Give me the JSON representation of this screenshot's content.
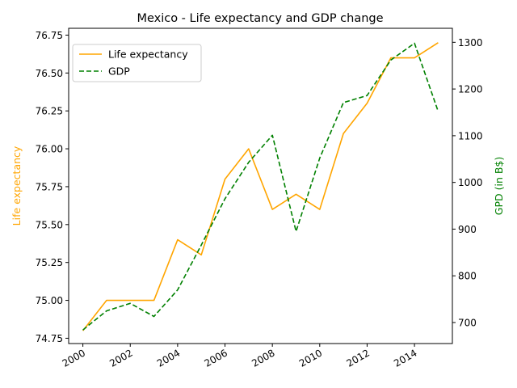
{
  "chart_data": {
    "type": "line",
    "title": "Mexico - Life expectancy and GDP change",
    "x": [
      2000,
      2001,
      2002,
      2003,
      2004,
      2005,
      2006,
      2007,
      2008,
      2009,
      2010,
      2011,
      2012,
      2013,
      2014,
      2015
    ],
    "xticks": [
      2000,
      2002,
      2004,
      2006,
      2008,
      2010,
      2012,
      2014
    ],
    "xlim": [
      1999.4,
      2015.6
    ],
    "y_left": {
      "label": "Life expectancy",
      "color": "#ffa500",
      "lim": [
        74.715,
        76.795
      ],
      "ticks": [
        74.75,
        75.0,
        75.25,
        75.5,
        75.75,
        76.0,
        76.25,
        76.5,
        76.75
      ],
      "tick_labels": [
        "74.75",
        "75.00",
        "75.25",
        "75.50",
        "75.75",
        "76.00",
        "76.25",
        "76.50",
        "76.75"
      ]
    },
    "y_right": {
      "label": "GPD (in B$)",
      "color": "#008000",
      "lim": [
        655,
        1330
      ],
      "ticks": [
        700,
        800,
        900,
        1000,
        1100,
        1200,
        1300
      ],
      "tick_labels": [
        "700",
        "800",
        "900",
        "1000",
        "1100",
        "1200",
        "1300"
      ]
    },
    "series": [
      {
        "name": "Life expectancy",
        "axis": "left",
        "color": "#ffa500",
        "style": "solid",
        "values": [
          74.8,
          75.0,
          75.0,
          75.0,
          75.4,
          75.3,
          75.8,
          76.0,
          75.6,
          75.7,
          75.6,
          76.1,
          76.3,
          76.6,
          76.6,
          76.7
        ]
      },
      {
        "name": "GDP",
        "axis": "right",
        "color": "#008000",
        "style": "dashed",
        "values": [
          684,
          725,
          741,
          713,
          770,
          866,
          965,
          1043,
          1101,
          895,
          1052,
          1171,
          1186,
          1262,
          1298,
          1152
        ]
      }
    ],
    "legend": {
      "position": "top-left"
    },
    "grid": false
  }
}
